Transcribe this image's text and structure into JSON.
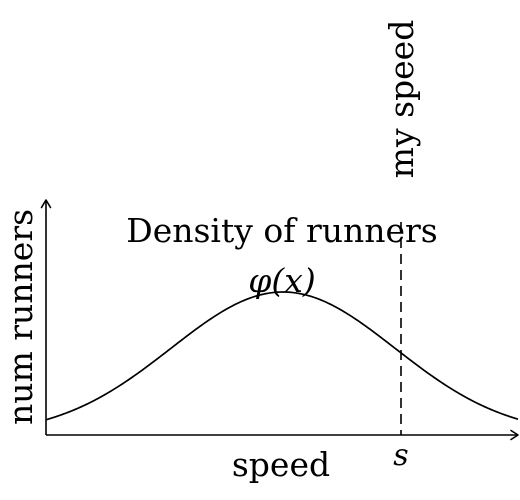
{
  "diagram": {
    "x_axis_label": "speed",
    "y_axis_label": "num runners",
    "curve_title": "Density of runners",
    "curve_symbol": "φ(x)",
    "marker_label": "my speed",
    "marker_tick": "s"
  }
}
